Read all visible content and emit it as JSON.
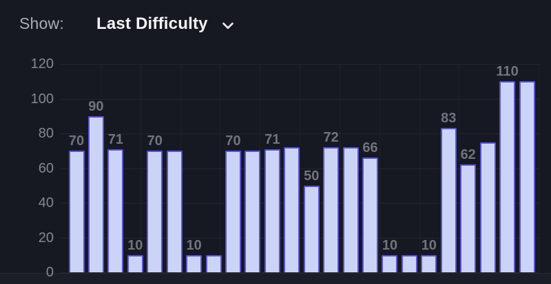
{
  "header": {
    "show_label": "Show:",
    "dropdown": {
      "selected_option": "Last Difficulty",
      "chevron_icon": "chevron-down-icon"
    }
  },
  "chart_data": {
    "type": "bar",
    "title": "",
    "xlabel": "",
    "ylabel": "",
    "values": [
      70,
      90,
      71,
      10,
      70,
      70,
      10,
      10,
      70,
      70,
      71,
      72,
      50,
      72,
      72,
      66,
      10,
      10,
      10,
      83,
      62,
      75,
      110,
      110
    ],
    "bar_labels": [
      "70",
      "90",
      "71",
      "10",
      "70",
      "",
      "10",
      "",
      "70",
      "",
      "71",
      "",
      "50",
      "72",
      "",
      "66",
      "10",
      "",
      "10",
      "83",
      "62",
      "",
      "110",
      ""
    ],
    "y_ticks": [
      0,
      20,
      40,
      60,
      80,
      100,
      120
    ],
    "ylim": [
      0,
      120
    ],
    "x_tick_labels": [],
    "grid": true,
    "legend": "none",
    "colors": {
      "background": "#161922",
      "bar_fill": "#cbd4f6",
      "bar_border": "#5a54d1",
      "value_label": "#71747c",
      "axis_label": "#85888f",
      "header_text": "#f3f4f6",
      "header_muted": "#a9adb8"
    }
  }
}
